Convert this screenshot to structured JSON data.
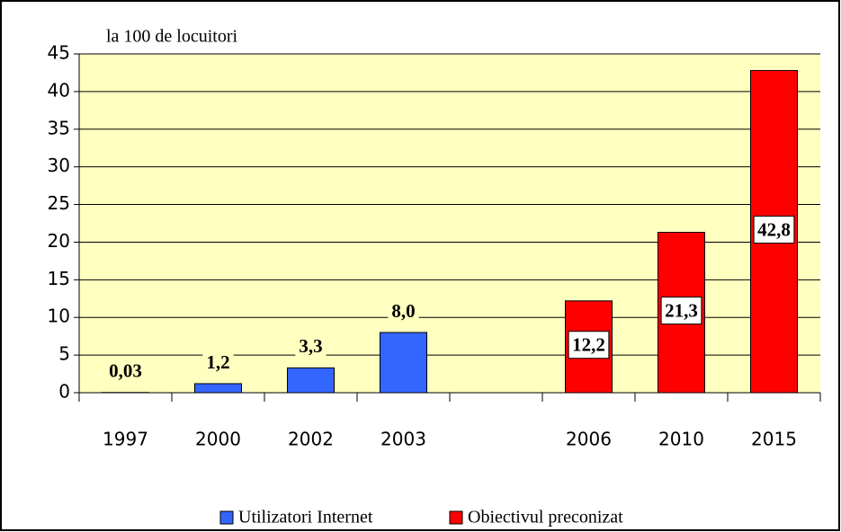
{
  "chart_data": {
    "type": "bar",
    "y_label": "la 100 de locuitori",
    "categories": [
      "1997",
      "2000",
      "2002",
      "2003",
      null,
      "2006",
      "2010",
      "2015"
    ],
    "series": [
      {
        "name": "Utilizatori Internet",
        "color": "#3366ff",
        "values": [
          0.03,
          1.2,
          3.3,
          8.0,
          null,
          null,
          null,
          null
        ],
        "value_labels": [
          "0,03",
          "1,2",
          "3,3",
          "8,0",
          null,
          null,
          null,
          null
        ]
      },
      {
        "name": "Obiectivul preconizat",
        "color": "#ff0000",
        "values": [
          null,
          null,
          null,
          null,
          null,
          12.2,
          21.3,
          42.8
        ],
        "value_labels": [
          null,
          null,
          null,
          null,
          null,
          "12,2",
          "21,3",
          "42,8"
        ]
      }
    ],
    "ylim": [
      0,
      45
    ],
    "yticks": [
      0,
      5,
      10,
      15,
      20,
      25,
      30,
      35,
      40,
      45
    ],
    "grid": true,
    "legend": "bottom"
  }
}
